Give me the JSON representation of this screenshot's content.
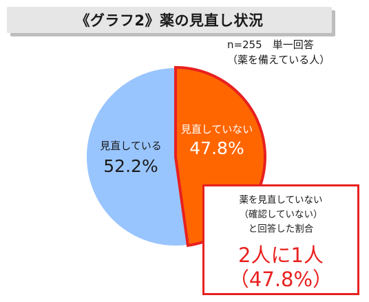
{
  "chart_data": {
    "type": "pie",
    "title": "《グラフ2》薬の見直し状況",
    "sample_note": [
      "n=255　単一回答",
      "（薬を備えている人）"
    ],
    "slices": [
      {
        "label": "見直していない",
        "value": 47.8,
        "value_label": "47.8%",
        "color": "#ff6600",
        "edge_color": "#e8201f",
        "text_color": "#ffffff"
      },
      {
        "label": "見直している",
        "value": 52.2,
        "value_label": "52.2%",
        "color": "#99c5ff",
        "edge_color": "#ffffff",
        "text_color": "#1a1a1a"
      }
    ],
    "legend": "none",
    "grid": false
  },
  "callout": {
    "description": [
      "薬を見直していない",
      "（確認していない）",
      "と回答した割合"
    ],
    "ratio": "2人に1人",
    "percent": "（47.8%）",
    "color": "#e8201f"
  }
}
